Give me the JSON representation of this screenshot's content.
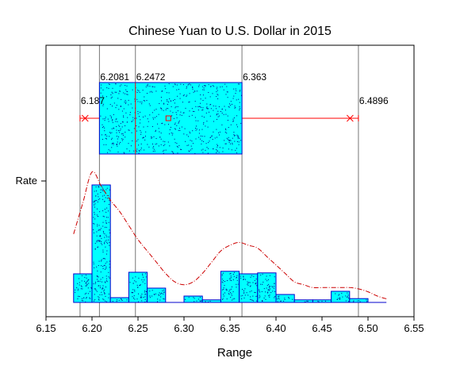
{
  "chart_data": {
    "type": "box",
    "title": "Chinese Yuan to U.S. Dollar in 2015",
    "xlabel": "Range",
    "ylabel": "",
    "y_tick_label": "Rate",
    "xlim": [
      6.15,
      6.55
    ],
    "x_ticks": [
      "6.15",
      "6.20",
      "6.25",
      "6.30",
      "6.35",
      "6.40",
      "6.45",
      "6.50",
      "6.55"
    ],
    "grid": "vertical lines at box statistics",
    "box": {
      "series": "Rate",
      "whisker_low": 6.187,
      "q1": 6.2081,
      "median": 6.2472,
      "q3": 6.363,
      "whisker_high": 6.4896,
      "mean": 6.283,
      "labels": [
        "6.187",
        "6.2081",
        "6.2472",
        "6.363",
        "6.4896"
      ]
    },
    "histogram": {
      "bin_width": 0.02,
      "bins": [
        {
          "x0": 6.18,
          "x1": 6.2,
          "count": 9
        },
        {
          "x0": 6.2,
          "x1": 6.22,
          "count": 37
        },
        {
          "x0": 6.22,
          "x1": 6.24,
          "count": 1.5
        },
        {
          "x0": 6.24,
          "x1": 6.26,
          "count": 9.5
        },
        {
          "x0": 6.26,
          "x1": 6.28,
          "count": 4.5
        },
        {
          "x0": 6.28,
          "x1": 6.3,
          "count": 0
        },
        {
          "x0": 6.3,
          "x1": 6.32,
          "count": 2
        },
        {
          "x0": 6.32,
          "x1": 6.34,
          "count": 0.8
        },
        {
          "x0": 6.34,
          "x1": 6.36,
          "count": 9.8
        },
        {
          "x0": 6.36,
          "x1": 6.38,
          "count": 9
        },
        {
          "x0": 6.38,
          "x1": 6.4,
          "count": 9.3
        },
        {
          "x0": 6.4,
          "x1": 6.42,
          "count": 2.5
        },
        {
          "x0": 6.42,
          "x1": 6.44,
          "count": 0.8
        },
        {
          "x0": 6.44,
          "x1": 6.46,
          "count": 0.8
        },
        {
          "x0": 6.46,
          "x1": 6.48,
          "count": 3.5
        },
        {
          "x0": 6.48,
          "x1": 6.5,
          "count": 1.2
        }
      ]
    },
    "density_curve": {
      "x": [
        6.18,
        6.19,
        6.2,
        6.21,
        6.22,
        6.23,
        6.24,
        6.25,
        6.26,
        6.27,
        6.28,
        6.29,
        6.3,
        6.31,
        6.32,
        6.33,
        6.34,
        6.35,
        6.36,
        6.37,
        6.38,
        6.39,
        6.4,
        6.41,
        6.42,
        6.43,
        6.44,
        6.45,
        6.46,
        6.47,
        6.48,
        6.49,
        6.5,
        6.51,
        6.52
      ],
      "y": [
        24,
        35,
        46,
        41,
        36,
        32,
        27,
        22,
        18,
        14,
        10,
        7,
        6,
        7,
        10,
        14,
        18,
        20,
        21,
        20,
        19,
        16,
        13,
        10,
        7,
        6,
        5,
        5,
        5,
        5,
        5,
        4.5,
        3.5,
        2,
        1
      ]
    },
    "colors": {
      "box_fill": "#00ffff",
      "box_stroke": "#0000cc",
      "hist_fill": "#00ffff",
      "hist_stroke": "#0000cc",
      "whisker": "#ff0000",
      "median": "#ff0000",
      "curve": "#cc0000",
      "ref_lines": "#777777",
      "dots": "#000088"
    }
  }
}
